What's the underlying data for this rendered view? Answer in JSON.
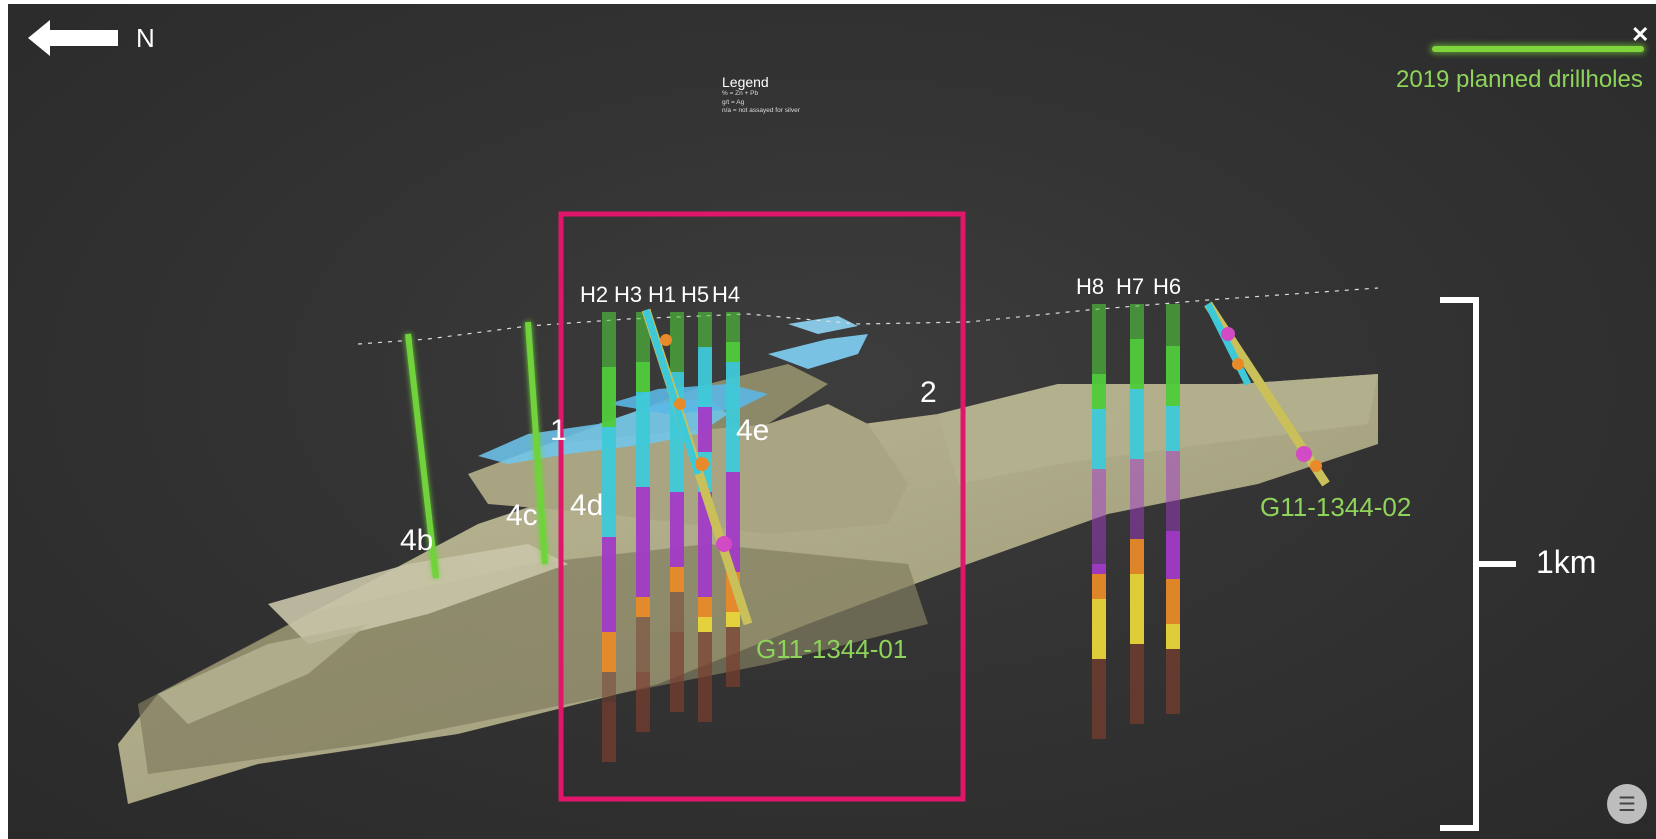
{
  "compass": {
    "direction": "N",
    "icon": "north-arrow-icon"
  },
  "legend": {
    "title": "Legend",
    "lines": [
      "% = Zn + Pb",
      "g/t = Ag",
      "n/a = not assayed for silver"
    ]
  },
  "planned_legend": {
    "label": "2019 planned drillholes",
    "color": "#7fd43a"
  },
  "close_icon": "close-icon",
  "menu_icon": "menu-icon",
  "holes_left": [
    "H2",
    "H3",
    "H1",
    "H5",
    "H4"
  ],
  "holes_right": [
    "H8",
    "H7",
    "H6"
  ],
  "zones": [
    "4b",
    "4c",
    "4d",
    "4e",
    "1",
    "2"
  ],
  "hole_ids": [
    "G11-1344-01",
    "G11-1344-02"
  ],
  "scale": {
    "label": "1km"
  },
  "colors": {
    "highlight": "#e0166b",
    "terrain": "#d8d4a8",
    "cyan": "#3ec9d8",
    "green": "#4fcc3a",
    "purple": "#a23bc7",
    "orange": "#e88a2a",
    "yellow": "#e8d63a",
    "brown": "#7a3f2f",
    "lake": "#6fc8f0"
  }
}
